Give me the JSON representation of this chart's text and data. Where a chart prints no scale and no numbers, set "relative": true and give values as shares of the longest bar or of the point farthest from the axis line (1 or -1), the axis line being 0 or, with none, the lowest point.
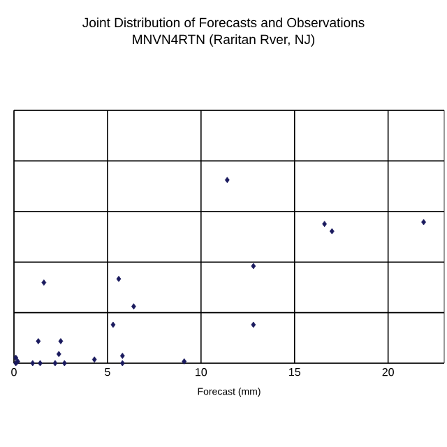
{
  "chart_data": {
    "type": "scatter",
    "title": "Joint Distribution of Forecasts and Observations",
    "subtitle": "MNVN4RTN (Raritan Rver, NJ)",
    "xlabel": "Forecast (mm)",
    "relative": true,
    "xlim": [
      0,
      23
    ],
    "xticks": [
      0,
      5,
      10,
      15,
      20
    ],
    "grid": true,
    "tick_labels": "x",
    "marker": "diamond",
    "series": [
      {
        "color": "#1a1a5e",
        "x": [
          1.6,
          5.6,
          6.4,
          5.3,
          1.3,
          2.5,
          2.4,
          4.3,
          5.8,
          9.1,
          11.4,
          12.8,
          12.8,
          16.6,
          17.0,
          21.9,
          0.1,
          0.2,
          1.0,
          1.4,
          2.2,
          2.7,
          5.8,
          0.1
        ],
        "values": [
          0.44,
          0.46,
          0.31,
          0.21,
          0.12,
          0.12,
          0.05,
          0.02,
          0.04,
          0.01,
          1,
          0.53,
          0.21,
          0.76,
          0.72,
          0.77,
          0.03,
          0.01,
          0,
          0,
          0,
          0,
          0,
          0
        ]
      }
    ]
  }
}
